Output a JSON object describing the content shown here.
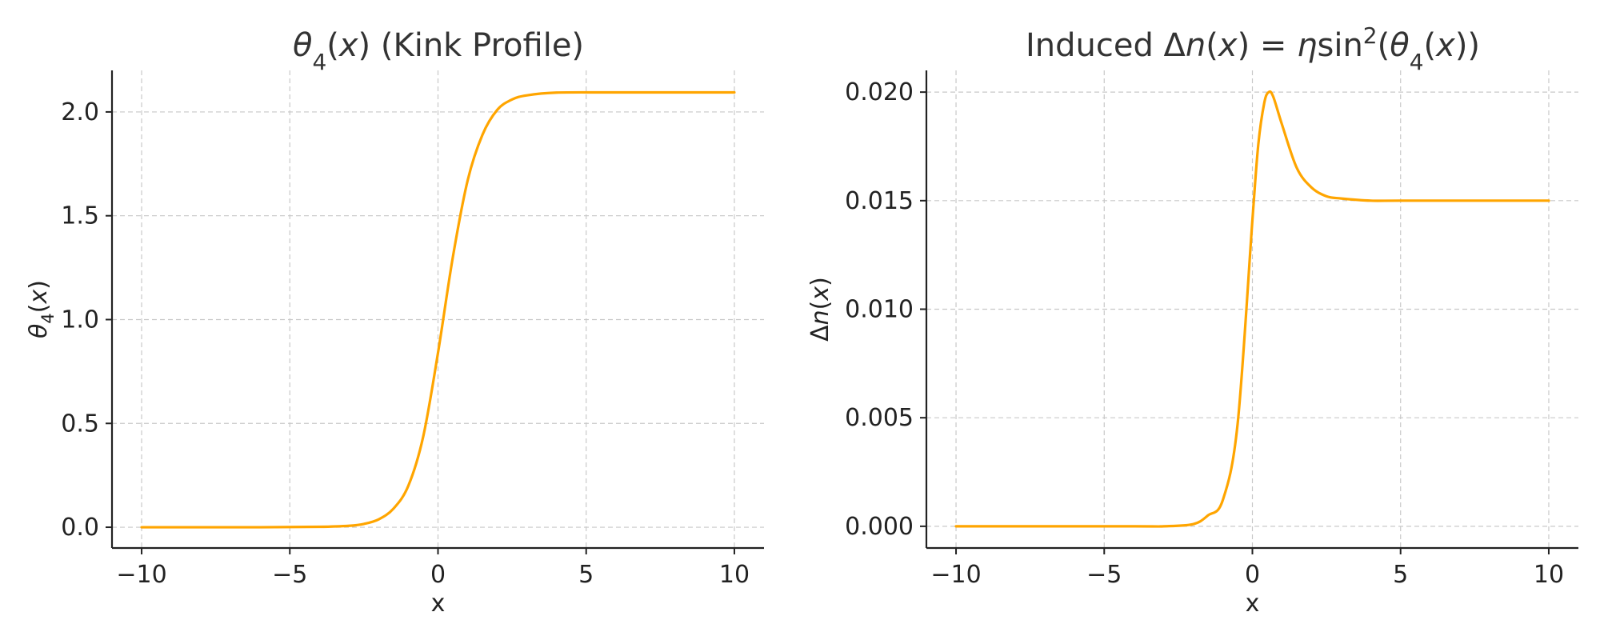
{
  "chart_data": [
    {
      "type": "line",
      "title_parts": [
        {
          "text": "θ",
          "italic": true
        },
        {
          "text": "4",
          "sub": true
        },
        {
          "text": "(",
          "italic": false
        },
        {
          "text": "x",
          "italic": true
        },
        {
          "text": ") (Kink Profile)",
          "italic": false
        }
      ],
      "xlabel": "x",
      "ylabel_parts": [
        {
          "text": "θ",
          "italic": true
        },
        {
          "text": "4",
          "sub": true
        },
        {
          "text": "(",
          "italic": false
        },
        {
          "text": "x",
          "italic": true
        },
        {
          "text": ")",
          "italic": false
        }
      ],
      "xlim": [
        -11,
        11
      ],
      "ylim": [
        -0.1,
        2.2
      ],
      "xticks": [
        -10,
        -5,
        0,
        5,
        10
      ],
      "xtick_labels": [
        "−10",
        "−5",
        "0",
        "5",
        "10"
      ],
      "yticks": [
        0.0,
        0.5,
        1.0,
        1.5,
        2.0
      ],
      "ytick_labels": [
        "0.0",
        "0.5",
        "1.0",
        "1.5",
        "2.0"
      ],
      "grid": true,
      "series": [
        {
          "color": "#FFA500",
          "x": [
            -10,
            -6,
            -4,
            -3,
            -2.5,
            -2,
            -1.5,
            -1,
            -0.5,
            0,
            0.5,
            1,
            1.5,
            2,
            2.5,
            3,
            4,
            6,
            10
          ],
          "y": [
            0.0,
            0.0,
            0.002,
            0.007,
            0.016,
            0.038,
            0.09,
            0.2,
            0.436,
            0.84,
            1.3,
            1.67,
            1.89,
            2.01,
            2.06,
            2.08,
            2.093,
            2.094,
            2.094
          ]
        }
      ]
    },
    {
      "type": "line",
      "title_parts": [
        {
          "text": "Induced Δ",
          "italic": false
        },
        {
          "text": "n",
          "italic": true
        },
        {
          "text": "(",
          "italic": false
        },
        {
          "text": "x",
          "italic": true
        },
        {
          "text": ") = ",
          "italic": false
        },
        {
          "text": "η",
          "italic": true
        },
        {
          "text": "sin",
          "italic": false
        },
        {
          "text": "2",
          "sup": true
        },
        {
          "text": "(",
          "italic": false
        },
        {
          "text": "θ",
          "italic": true
        },
        {
          "text": "4",
          "sub": true
        },
        {
          "text": "(",
          "italic": false
        },
        {
          "text": "x",
          "italic": true
        },
        {
          "text": "))",
          "italic": false
        }
      ],
      "xlabel": "x",
      "ylabel_parts": [
        {
          "text": "Δ",
          "italic": false
        },
        {
          "text": "n",
          "italic": true
        },
        {
          "text": "(",
          "italic": false
        },
        {
          "text": "x",
          "italic": true
        },
        {
          "text": ")",
          "italic": false
        }
      ],
      "xlim": [
        -11,
        11
      ],
      "ylim": [
        -0.001,
        0.021
      ],
      "xticks": [
        -10,
        -5,
        0,
        5,
        10
      ],
      "xtick_labels": [
        "−10",
        "−5",
        "0",
        "5",
        "10"
      ],
      "yticks": [
        0.0,
        0.005,
        0.01,
        0.015,
        0.02
      ],
      "ytick_labels": [
        "0.000",
        "0.005",
        "0.010",
        "0.015",
        "0.020"
      ],
      "grid": true,
      "series": [
        {
          "color": "#FFA500",
          "x": [
            -10,
            -4,
            -3,
            -2,
            -1.5,
            -1,
            -0.5,
            0,
            0.2,
            0.4,
            0.55,
            0.7,
            1,
            1.5,
            2,
            2.5,
            3,
            4,
            5,
            10
          ],
          "y": [
            0.0,
            0.0,
            0.0,
            0.0001,
            0.0005,
            0.0012,
            0.0047,
            0.0141,
            0.0176,
            0.0195,
            0.02,
            0.0198,
            0.0185,
            0.0165,
            0.0156,
            0.0152,
            0.0151,
            0.015,
            0.015,
            0.015
          ]
        }
      ]
    }
  ]
}
